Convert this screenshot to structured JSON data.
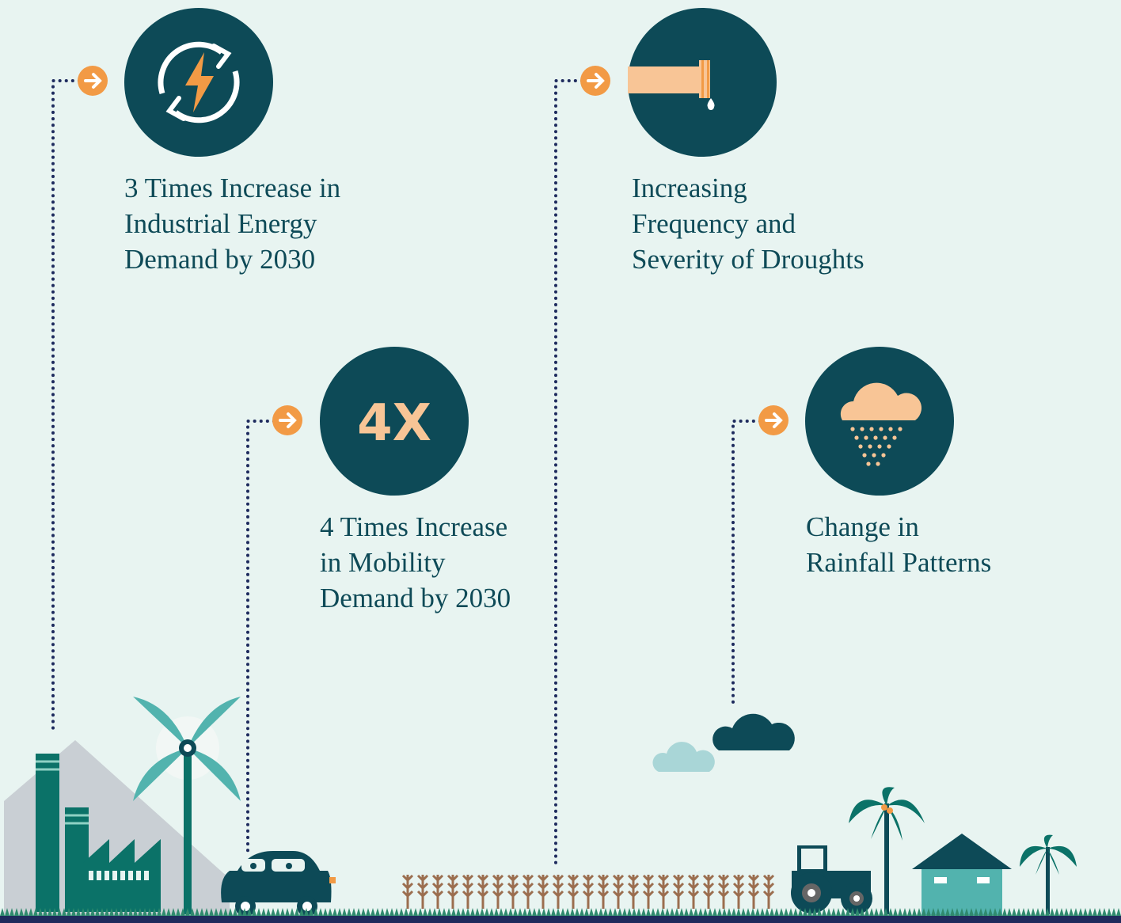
{
  "items": [
    {
      "lines": [
        "3 Times Increase in",
        "Industrial Energy",
        "Demand by 2030"
      ]
    },
    {
      "icon_text": "4X",
      "lines": [
        "4 Times Increase",
        "in Mobility",
        "Demand by 2030"
      ]
    },
    {
      "lines": [
        "Increasing",
        "Frequency and",
        "Severity of Droughts"
      ]
    },
    {
      "lines": [
        "Change in",
        "Rainfall Patterns"
      ]
    }
  ]
}
